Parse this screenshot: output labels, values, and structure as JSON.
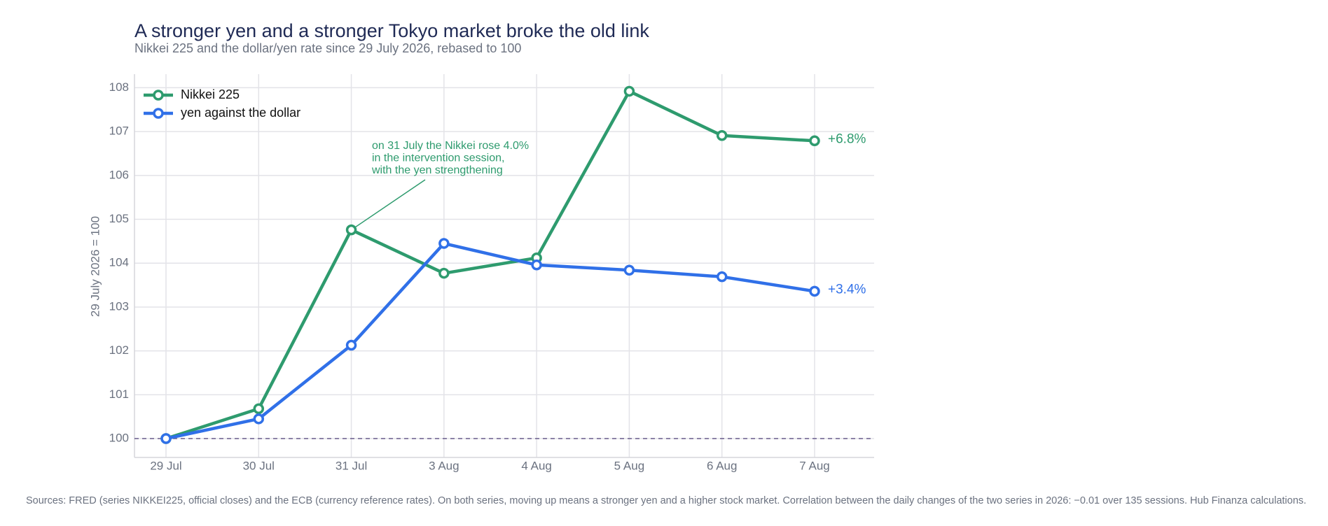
{
  "chart_data": {
    "type": "line",
    "title": "A stronger yen and a stronger Tokyo market broke the old link",
    "subtitle": "Nikkei 225 and the dollar/yen rate since 29 July 2026, rebased to 100",
    "y_label": "29 July 2026 = 100",
    "categories": [
      "29 Jul",
      "30 Jul",
      "31 Jul",
      "3 Aug",
      "4 Aug",
      "5 Aug",
      "6 Aug",
      "7 Aug"
    ],
    "series": [
      {
        "name": "Nikkei 225",
        "color": "#2e9b6e",
        "values": [
          100,
          100.68,
          104.76,
          103.77,
          104.12,
          107.92,
          106.91,
          106.79
        ],
        "end_label": "+6.8%"
      },
      {
        "name": "yen against the dollar",
        "color": "#3070e8",
        "values": [
          100,
          100.45,
          102.13,
          104.45,
          103.96,
          103.84,
          103.69,
          103.36
        ],
        "end_label": "+3.4%"
      }
    ],
    "ylim": [
      99.57,
      108.31
    ],
    "yticks": [
      100,
      101,
      102,
      103,
      104,
      105,
      106,
      107,
      108
    ],
    "grid": true,
    "reference_line": 100,
    "legend": "top-left",
    "annotation": {
      "lines": [
        "on 31 July the Nikkei rose 4.0%",
        "in the intervention session,",
        "with the yen strengthening"
      ],
      "category": 2
    },
    "footer": "Sources: FRED (series NIKKEI225, official closes) and the ECB (currency reference rates). On both series, moving up means a stronger yen and a higher stock market. Correlation between the daily changes of the two series in 2026: −0.01 over 135 sessions. Hub Finanza calculations."
  }
}
